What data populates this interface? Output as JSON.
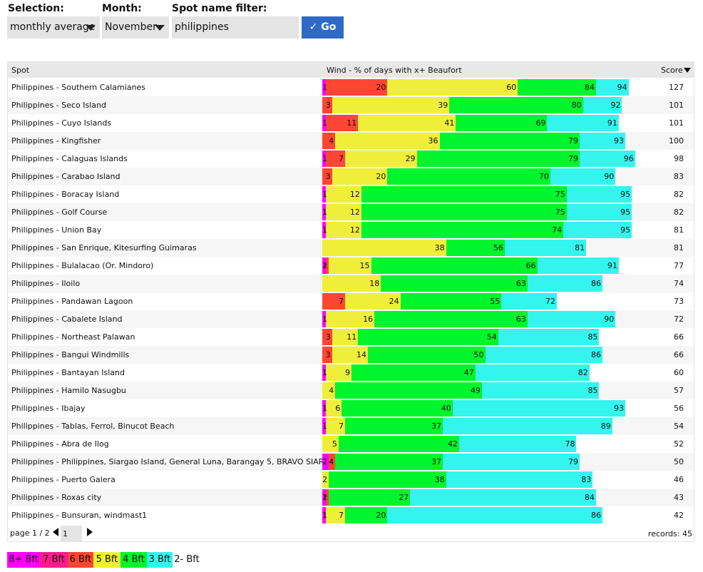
{
  "filters": {
    "selection_label": "Selection:",
    "selection_value": "monthly average",
    "month_label": "Month:",
    "month_value": "November",
    "spot_filter_label": "Spot name filter:",
    "spot_filter_value": "philippines",
    "go_label": "Go"
  },
  "table": {
    "col_spot": "Spot",
    "col_wind": "Wind - % of days with x+ Beaufort",
    "col_score": "Score",
    "rows": [
      {
        "name": "Philippines - Southern Calamianes",
        "score": "127",
        "vals": [
          1,
          20,
          60,
          84,
          94
        ]
      },
      {
        "name": "Philippines - Seco Island",
        "score": "101",
        "vals": [
          0,
          3,
          39,
          80,
          92
        ]
      },
      {
        "name": "Philippines - Cuyo Islands",
        "score": "101",
        "vals": [
          1,
          11,
          41,
          69,
          91
        ]
      },
      {
        "name": "Philippines - Kingfisher",
        "score": "100",
        "vals": [
          0,
          4,
          36,
          79,
          93
        ]
      },
      {
        "name": "Philippines - Calaguas Islands",
        "score": "98",
        "vals": [
          1,
          7,
          29,
          79,
          96
        ]
      },
      {
        "name": "Philippines - Carabao Island",
        "score": "83",
        "vals": [
          0,
          3,
          20,
          70,
          90
        ]
      },
      {
        "name": "Philippines - Boracay Island",
        "score": "82",
        "vals": [
          1,
          1,
          12,
          75,
          95
        ]
      },
      {
        "name": "Philippines - Golf Course",
        "score": "82",
        "vals": [
          1,
          1,
          12,
          75,
          95
        ]
      },
      {
        "name": "Philippines - Union Bay",
        "score": "81",
        "vals": [
          1,
          1,
          12,
          74,
          95
        ]
      },
      {
        "name": "Philippines - San Enrique, Kitesurfing Guimaras",
        "score": "81",
        "vals": [
          0,
          0,
          38,
          56,
          81
        ]
      },
      {
        "name": "Philippines - Bulalacao (Or. Mindoro)",
        "score": "77",
        "vals": [
          1,
          2,
          15,
          66,
          91
        ]
      },
      {
        "name": "Philippines - Iloilo",
        "score": "74",
        "vals": [
          0,
          0,
          18,
          63,
          86
        ]
      },
      {
        "name": "Philippines - Pandawan Lagoon",
        "score": "73",
        "vals": [
          0,
          7,
          24,
          55,
          72
        ]
      },
      {
        "name": "Philippines - Cabalete Island",
        "score": "72",
        "vals": [
          1,
          1,
          16,
          63,
          90
        ]
      },
      {
        "name": "Philippines - Northeast Palawan",
        "score": "66",
        "vals": [
          0,
          3,
          11,
          54,
          85
        ]
      },
      {
        "name": "Philippines - Bangui Windmills",
        "score": "66",
        "vals": [
          0,
          3,
          14,
          50,
          86
        ]
      },
      {
        "name": "Philippines - Bantayan Island",
        "score": "60",
        "vals": [
          1,
          1,
          9,
          47,
          82
        ]
      },
      {
        "name": "Philippines - Hamilo Nasugbu",
        "score": "57",
        "vals": [
          0,
          0,
          4,
          49,
          85
        ]
      },
      {
        "name": "Philippines - Ibajay",
        "score": "56",
        "vals": [
          1,
          1,
          6,
          40,
          93
        ]
      },
      {
        "name": "Philippines - Tablas, Ferrol, Binucot Beach",
        "score": "54",
        "vals": [
          1,
          1,
          7,
          37,
          89
        ]
      },
      {
        "name": "Philippines - Abra de Ilog",
        "score": "52",
        "vals": [
          0,
          0,
          5,
          42,
          78
        ]
      },
      {
        "name": "Philippines - Philippines, Siargao Island, General Luna, Barangay 5, BRAVO SIARGAO",
        "score": "50",
        "vals": [
          2,
          4,
          4,
          37,
          79
        ]
      },
      {
        "name": "Philippines - Puerto Galera",
        "score": "46",
        "vals": [
          0,
          0,
          2,
          38,
          83
        ]
      },
      {
        "name": "Philippines - Roxas city",
        "score": "43",
        "vals": [
          1,
          2,
          2,
          27,
          84
        ]
      },
      {
        "name": "Philippines - Bunsuran, windmast1",
        "score": "42",
        "vals": [
          1,
          1,
          7,
          20,
          86
        ]
      }
    ]
  },
  "footer": {
    "page_text": "page 1 / 2",
    "page_input": "1",
    "records_text": "records: 45"
  },
  "legend": [
    {
      "label": "8+ Bft",
      "color": "#ff00ff"
    },
    {
      "label": "7 Bft",
      "color": "#ff1b8d"
    },
    {
      "label": "6 Bft",
      "color": "#ff4533"
    },
    {
      "label": "5 Bft",
      "color": "#efef3a"
    },
    {
      "label": "4 Bft",
      "color": "#00f52c"
    },
    {
      "label": "3 Bft",
      "color": "#33f5ee"
    },
    {
      "label": "2- Bft",
      "color": "#ffffff"
    }
  ],
  "bar_colors": [
    "#ff00ff",
    "#ff4533",
    "#efef3a",
    "#00f52c",
    "#33f5ee"
  ]
}
